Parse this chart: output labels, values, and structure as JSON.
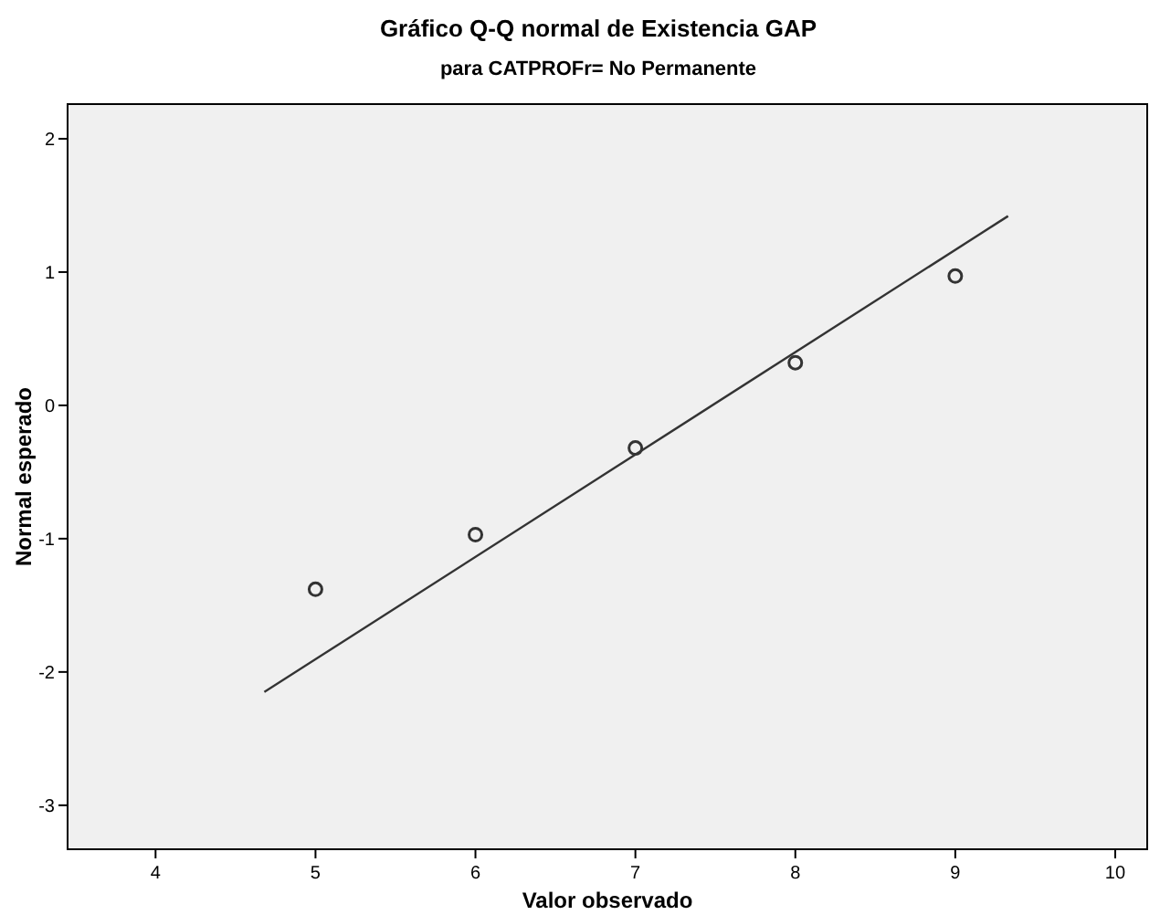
{
  "chart_data": {
    "type": "scatter",
    "title": "Gráfico Q-Q normal de Existencia GAP",
    "subtitle": "para CATPROFr= No Permanente",
    "xlabel": "Valor observado",
    "ylabel": "Normal esperado",
    "series": [
      {
        "color": "#333333",
        "marker": "circle",
        "x": [
          5,
          6,
          7,
          8,
          9
        ],
        "values": [
          -1.38,
          -0.97,
          -0.32,
          0.32,
          0.97
        ]
      },
      {
        "type": "line",
        "color": "#333333",
        "marker": "none",
        "x": [
          4.68,
          9.33
        ],
        "values": [
          -2.15,
          1.42
        ]
      }
    ],
    "grid": false,
    "xlim": [
      3.45,
      10.2
    ],
    "xticks": [
      4,
      5,
      6,
      7,
      8,
      9,
      10
    ],
    "ylim": [
      -3.33,
      2.26
    ],
    "yticks": [
      -3,
      -2,
      -1,
      0,
      1,
      2
    ]
  }
}
